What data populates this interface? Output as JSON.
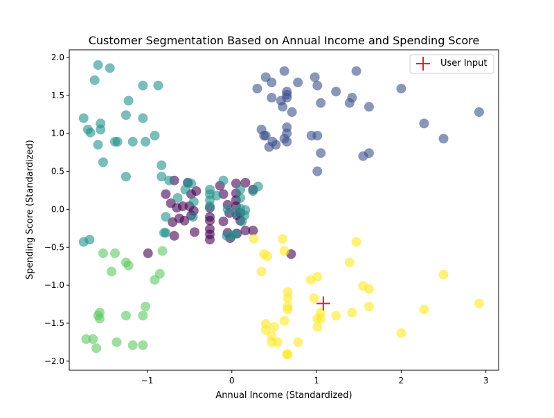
{
  "chart_data": {
    "type": "scatter",
    "title": "Customer Segmentation Based on Annual Income and Spending Score",
    "xlabel": "Annual Income (Standardized)",
    "ylabel": "Spending Score (Standardized)",
    "xlim": [
      -1.92,
      3.15
    ],
    "ylim": [
      -2.12,
      2.1
    ],
    "xticks": [
      -1,
      0,
      1,
      2,
      3
    ],
    "xtick_labels": [
      "−1",
      "0",
      "1",
      "2",
      "3"
    ],
    "yticks": [
      -2.0,
      -1.5,
      -1.0,
      -0.5,
      0.0,
      0.5,
      1.0,
      1.5,
      2.0
    ],
    "ytick_labels": [
      "−2.0",
      "−1.5",
      "−1.0",
      "−0.5",
      "0.0",
      "0.5",
      "1.0",
      "1.5",
      "2.0"
    ],
    "grid": false,
    "legend": {
      "position": "upper-right",
      "entries": [
        {
          "label": "User Input",
          "marker": "plus",
          "color": "#d62728"
        }
      ]
    },
    "marker_opacity": 0.6,
    "series": [
      {
        "color": "#440154",
        "points": [
          [
            -0.68,
            0.38
          ],
          [
            -0.78,
            0.2
          ],
          [
            -0.72,
            0.08
          ],
          [
            -0.65,
            0.02
          ],
          [
            -0.7,
            -0.17
          ],
          [
            -0.68,
            -0.35
          ],
          [
            -0.62,
            -0.12
          ],
          [
            -0.56,
            -0.15
          ],
          [
            -0.58,
            0.04
          ],
          [
            -0.52,
            0.35
          ],
          [
            -0.48,
            0.2
          ],
          [
            -0.5,
            0.04
          ],
          [
            -0.45,
            -0.02
          ],
          [
            -0.48,
            -0.08
          ],
          [
            -0.44,
            -0.3
          ],
          [
            -0.42,
            0.24
          ],
          [
            -0.26,
            0.02
          ],
          [
            -0.26,
            -0.1
          ],
          [
            -0.26,
            -0.15
          ],
          [
            -0.26,
            -0.26
          ],
          [
            -0.26,
            -0.33
          ],
          [
            -0.26,
            -0.4
          ],
          [
            -0.14,
            0.31
          ],
          [
            -0.1,
            0.2
          ],
          [
            -0.1,
            -0.16
          ],
          [
            -0.05,
            0.06
          ],
          [
            -0.03,
            -0.05
          ],
          [
            -0.05,
            -0.31
          ],
          [
            -0.02,
            -0.38
          ],
          [
            0.05,
            0.34
          ],
          [
            0.05,
            0.21
          ],
          [
            0.05,
            0.12
          ],
          [
            0.05,
            0.04
          ],
          [
            0.06,
            -0.08
          ],
          [
            0.1,
            -0.05
          ],
          [
            0.1,
            -0.15
          ],
          [
            0.16,
            -0.28
          ],
          [
            0.16,
            0.35
          ],
          [
            0.25,
            0.26
          ],
          [
            0.25,
            -0.28
          ],
          [
            0.06,
            -0.32
          ],
          [
            -0.99,
            -0.58
          ],
          [
            0.7,
            -0.59
          ]
        ]
      },
      {
        "color": "#3b528b",
        "points": [
          [
            0.4,
            1.74
          ],
          [
            0.62,
            1.82
          ],
          [
            0.98,
            1.74
          ],
          [
            1.47,
            1.82
          ],
          [
            0.3,
            1.59
          ],
          [
            0.47,
            1.67
          ],
          [
            0.65,
            1.55
          ],
          [
            0.65,
            1.51
          ],
          [
            0.65,
            1.47
          ],
          [
            0.78,
            1.67
          ],
          [
            1.01,
            1.63
          ],
          [
            1.23,
            1.55
          ],
          [
            1.42,
            1.47
          ],
          [
            1.39,
            1.4
          ],
          [
            1.62,
            1.35
          ],
          [
            2.0,
            1.59
          ],
          [
            0.47,
            1.47
          ],
          [
            0.58,
            1.43
          ],
          [
            0.6,
            1.35
          ],
          [
            0.71,
            1.28
          ],
          [
            1.05,
            1.4
          ],
          [
            2.92,
            1.28
          ],
          [
            0.35,
            1.05
          ],
          [
            0.38,
            0.97
          ],
          [
            0.4,
            0.97
          ],
          [
            0.65,
            1.08
          ],
          [
            0.65,
            1.0
          ],
          [
            0.48,
            0.89
          ],
          [
            0.52,
            0.85
          ],
          [
            0.62,
            0.93
          ],
          [
            0.65,
            0.89
          ],
          [
            0.44,
            0.82
          ],
          [
            0.94,
            0.97
          ],
          [
            1.01,
            0.97
          ],
          [
            1.05,
            0.74
          ],
          [
            1.01,
            0.5
          ],
          [
            2.27,
            1.13
          ],
          [
            2.5,
            0.93
          ],
          [
            1.55,
            0.7
          ],
          [
            1.62,
            0.74
          ]
        ]
      },
      {
        "color": "#21918c",
        "points": [
          [
            -1.58,
            1.9
          ],
          [
            -1.44,
            1.86
          ],
          [
            -1.62,
            1.7
          ],
          [
            -1.05,
            1.63
          ],
          [
            -0.87,
            1.63
          ],
          [
            -1.22,
            1.43
          ],
          [
            -1.75,
            1.2
          ],
          [
            -1.55,
            1.13
          ],
          [
            -1.25,
            1.24
          ],
          [
            -1.05,
            1.2
          ],
          [
            -1.7,
            1.05
          ],
          [
            -1.67,
            1.01
          ],
          [
            -1.55,
            1.05
          ],
          [
            -1.38,
            0.89
          ],
          [
            -1.35,
            0.89
          ],
          [
            -1.17,
            0.89
          ],
          [
            -1.02,
            0.89
          ],
          [
            -0.91,
            0.97
          ],
          [
            -1.58,
            0.85
          ],
          [
            -1.52,
            0.62
          ],
          [
            -0.83,
            0.58
          ],
          [
            -0.83,
            0.43
          ],
          [
            -1.25,
            0.43
          ],
          [
            -1.75,
            -0.43
          ],
          [
            -1.68,
            -0.4
          ],
          [
            -0.74,
            0.38
          ],
          [
            -0.64,
            0.15
          ],
          [
            -0.55,
            0.26
          ],
          [
            -0.52,
            0.35
          ],
          [
            -0.48,
            0.34
          ],
          [
            -0.45,
            0.1
          ],
          [
            -0.46,
            -0.1
          ],
          [
            -0.78,
            -0.1
          ],
          [
            -0.8,
            -0.31
          ],
          [
            -0.78,
            -0.31
          ],
          [
            -0.26,
            0.26
          ],
          [
            -0.26,
            0.2
          ],
          [
            -0.26,
            0.12
          ],
          [
            -0.26,
            0.04
          ],
          [
            -0.18,
            0.18
          ],
          [
            -0.1,
            0.38
          ],
          [
            0.1,
            0.26
          ],
          [
            0.1,
            0.15
          ],
          [
            0.1,
            0.01
          ],
          [
            0.05,
            -0.05
          ],
          [
            0.15,
            -0.08
          ],
          [
            0.12,
            -0.16
          ],
          [
            0.16,
            -0.01
          ],
          [
            0.05,
            -0.32
          ],
          [
            0.0,
            -0.35
          ],
          [
            -0.06,
            -0.35
          ],
          [
            -0.05,
            0.0
          ],
          [
            0.25,
            0.24
          ],
          [
            0.31,
            0.3
          ]
        ]
      },
      {
        "color": "#5ec962",
        "points": [
          [
            -1.52,
            -0.58
          ],
          [
            -1.38,
            -0.58
          ],
          [
            -1.25,
            -0.7
          ],
          [
            -1.22,
            -0.74
          ],
          [
            -0.82,
            -0.55
          ],
          [
            -0.85,
            -0.85
          ],
          [
            -1.42,
            -0.82
          ],
          [
            -0.91,
            -0.93
          ],
          [
            -1.02,
            -1.28
          ],
          [
            -1.56,
            -1.36
          ],
          [
            -1.58,
            -1.4
          ],
          [
            -1.56,
            -1.44
          ],
          [
            -1.25,
            -1.4
          ],
          [
            -1.05,
            -1.4
          ],
          [
            -1.72,
            -1.71
          ],
          [
            -1.64,
            -1.71
          ],
          [
            -1.36,
            -1.75
          ],
          [
            -1.17,
            -1.79
          ],
          [
            -1.05,
            -1.79
          ],
          [
            -1.6,
            -1.83
          ]
        ]
      },
      {
        "color": "#fde725",
        "points": [
          [
            0.6,
            -0.39
          ],
          [
            0.62,
            -0.55
          ],
          [
            0.38,
            -0.59
          ],
          [
            0.42,
            -0.62
          ],
          [
            0.35,
            -0.82
          ],
          [
            0.93,
            -0.93
          ],
          [
            1.01,
            -0.89
          ],
          [
            1.39,
            -0.7
          ],
          [
            1.47,
            -0.43
          ],
          [
            1.55,
            -1.01
          ],
          [
            1.62,
            -1.05
          ],
          [
            2.5,
            -0.86
          ],
          [
            0.66,
            -1.09
          ],
          [
            0.66,
            -1.17
          ],
          [
            0.66,
            -1.28
          ],
          [
            0.66,
            -1.32
          ],
          [
            0.97,
            -1.17
          ],
          [
            1.05,
            -1.36
          ],
          [
            1.05,
            -1.44
          ],
          [
            1.01,
            -1.44
          ],
          [
            1.01,
            -1.55
          ],
          [
            1.23,
            -1.4
          ],
          [
            1.42,
            -1.36
          ],
          [
            1.62,
            -1.28
          ],
          [
            2.27,
            -1.32
          ],
          [
            2.92,
            -1.24
          ],
          [
            0.4,
            -1.51
          ],
          [
            0.4,
            -1.59
          ],
          [
            0.5,
            -1.55
          ],
          [
            0.62,
            -1.47
          ],
          [
            0.47,
            -1.67
          ],
          [
            0.47,
            -1.75
          ],
          [
            0.54,
            -1.75
          ],
          [
            0.78,
            -1.75
          ],
          [
            0.65,
            -1.91
          ],
          [
            0.66,
            -1.91
          ],
          [
            2.0,
            -1.63
          ],
          [
            0.26,
            -0.39
          ]
        ]
      }
    ],
    "user_input": {
      "label": "User Input",
      "x": 1.08,
      "y": -1.24,
      "color": "#d62728"
    }
  }
}
